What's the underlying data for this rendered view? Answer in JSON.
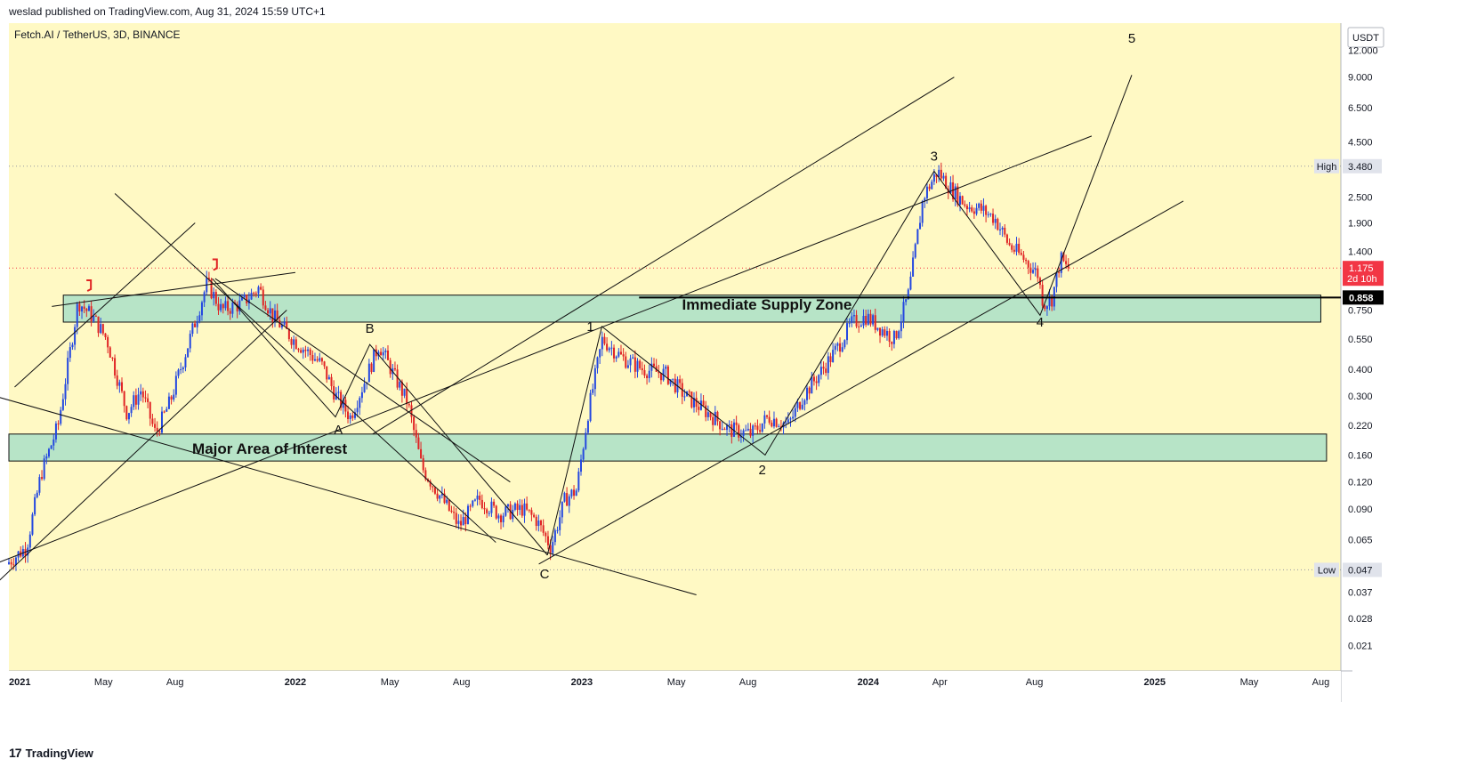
{
  "header": {
    "published": "weslad published on TradingView.com, Aug 31, 2024 15:59 UTC+1"
  },
  "footer": {
    "logo_glyph": "17",
    "brand": "TradingView"
  },
  "chart_data": {
    "type": "candlestick",
    "title": "Fetch.AI / TetherUS, 3D, BINANCE",
    "currency": "USDT",
    "y_scale": "log",
    "ylim": [
      0.016,
      16
    ],
    "y_ticks": [
      "12.000",
      "9.000",
      "6.500",
      "4.500",
      "2.500",
      "1.900",
      "1.400",
      "0.750",
      "0.550",
      "0.400",
      "0.300",
      "0.220",
      "0.160",
      "0.120",
      "0.090",
      "0.065",
      "0.037",
      "0.028",
      "0.021"
    ],
    "x_range": [
      2021.0,
      2025.65
    ],
    "x_ticks": [
      {
        "label": "2021",
        "x": 2021.0,
        "bold": true
      },
      {
        "label": "May",
        "x": 2021.33,
        "bold": false
      },
      {
        "label": "Aug",
        "x": 2021.58,
        "bold": false
      },
      {
        "label": "2022",
        "x": 2022.0,
        "bold": true
      },
      {
        "label": "May",
        "x": 2022.33,
        "bold": false
      },
      {
        "label": "Aug",
        "x": 2022.58,
        "bold": false
      },
      {
        "label": "2023",
        "x": 2023.0,
        "bold": true
      },
      {
        "label": "May",
        "x": 2023.33,
        "bold": false
      },
      {
        "label": "Aug",
        "x": 2023.58,
        "bold": false
      },
      {
        "label": "2024",
        "x": 2024.0,
        "bold": true
      },
      {
        "label": "Apr",
        "x": 2024.25,
        "bold": false
      },
      {
        "label": "Aug",
        "x": 2024.58,
        "bold": false
      },
      {
        "label": "2025",
        "x": 2025.0,
        "bold": true
      },
      {
        "label": "May",
        "x": 2025.33,
        "bold": false
      },
      {
        "label": "Aug",
        "x": 2025.58,
        "bold": false
      }
    ],
    "price_path": [
      [
        2021.0,
        0.05
      ],
      [
        2021.07,
        0.06
      ],
      [
        2021.12,
        0.13
      ],
      [
        2021.18,
        0.22
      ],
      [
        2021.25,
        0.82
      ],
      [
        2021.3,
        0.7
      ],
      [
        2021.35,
        0.55
      ],
      [
        2021.42,
        0.25
      ],
      [
        2021.47,
        0.32
      ],
      [
        2021.52,
        0.2
      ],
      [
        2021.57,
        0.28
      ],
      [
        2021.63,
        0.5
      ],
      [
        2021.7,
        1.0
      ],
      [
        2021.75,
        0.75
      ],
      [
        2021.82,
        0.8
      ],
      [
        2021.88,
        0.95
      ],
      [
        2021.93,
        0.7
      ],
      [
        2022.0,
        0.55
      ],
      [
        2022.1,
        0.42
      ],
      [
        2022.15,
        0.3
      ],
      [
        2022.2,
        0.24
      ],
      [
        2022.25,
        0.35
      ],
      [
        2022.3,
        0.52
      ],
      [
        2022.35,
        0.38
      ],
      [
        2022.4,
        0.28
      ],
      [
        2022.45,
        0.14
      ],
      [
        2022.52,
        0.1
      ],
      [
        2022.58,
        0.075
      ],
      [
        2022.65,
        0.1
      ],
      [
        2022.72,
        0.085
      ],
      [
        2022.8,
        0.09
      ],
      [
        2022.85,
        0.08
      ],
      [
        2022.9,
        0.06
      ],
      [
        2022.95,
        0.1
      ],
      [
        2022.99,
        0.11
      ],
      [
        2023.03,
        0.25
      ],
      [
        2023.08,
        0.55
      ],
      [
        2023.15,
        0.45
      ],
      [
        2023.22,
        0.4
      ],
      [
        2023.3,
        0.38
      ],
      [
        2023.37,
        0.3
      ],
      [
        2023.45,
        0.25
      ],
      [
        2023.52,
        0.21
      ],
      [
        2023.6,
        0.2
      ],
      [
        2023.66,
        0.24
      ],
      [
        2023.73,
        0.22
      ],
      [
        2023.78,
        0.3
      ],
      [
        2023.85,
        0.4
      ],
      [
        2023.9,
        0.5
      ],
      [
        2023.95,
        0.65
      ],
      [
        2024.0,
        0.7
      ],
      [
        2024.05,
        0.62
      ],
      [
        2024.1,
        0.55
      ],
      [
        2024.15,
        0.9
      ],
      [
        2024.2,
        2.5
      ],
      [
        2024.25,
        3.3
      ],
      [
        2024.3,
        2.7
      ],
      [
        2024.35,
        2.3
      ],
      [
        2024.4,
        2.2
      ],
      [
        2024.45,
        2.0
      ],
      [
        2024.5,
        1.5
      ],
      [
        2024.55,
        1.3
      ],
      [
        2024.6,
        1.1
      ],
      [
        2024.62,
        0.8
      ],
      [
        2024.65,
        0.85
      ],
      [
        2024.68,
        1.3
      ],
      [
        2024.7,
        1.175
      ]
    ],
    "zones": [
      {
        "name": "Immediate Supply Zone",
        "x_start": 2021.19,
        "x_end": 2025.58,
        "y_low": 0.66,
        "y_high": 0.88
      },
      {
        "name": "Major Area of Interest",
        "x_start": 2021.0,
        "x_end": 2025.6,
        "y_low": 0.15,
        "y_high": 0.2
      }
    ],
    "wave_labels": [
      {
        "label": "1",
        "x": 2023.03,
        "y": 0.6
      },
      {
        "label": "2",
        "x": 2023.63,
        "y": 0.13
      },
      {
        "label": "3",
        "x": 2024.23,
        "y": 3.7
      },
      {
        "label": "4",
        "x": 2024.6,
        "y": 0.63
      },
      {
        "label": "5",
        "x": 2024.92,
        "y": 13.0
      },
      {
        "label": "A",
        "x": 2022.15,
        "y": 0.2
      },
      {
        "label": "B",
        "x": 2022.26,
        "y": 0.59
      },
      {
        "label": "C",
        "x": 2022.87,
        "y": 0.043
      }
    ],
    "wave_path": [
      [
        2022.88,
        0.055
      ],
      [
        2023.07,
        0.63
      ],
      [
        2023.64,
        0.16
      ],
      [
        2024.23,
        3.3
      ],
      [
        2024.6,
        0.71
      ],
      [
        2024.92,
        9.2
      ]
    ],
    "abc_path": [
      [
        2021.71,
        1.05
      ],
      [
        2022.14,
        0.24
      ],
      [
        2022.26,
        0.52
      ],
      [
        2022.88,
        0.055
      ]
    ],
    "trendlines": [
      [
        [
          2020.95,
          0.05
        ],
        [
          2024.78,
          4.8
        ]
      ],
      [
        [
          2020.95,
          0.04
        ],
        [
          2021.97,
          0.75
        ]
      ],
      [
        [
          2020.95,
          0.3
        ],
        [
          2023.4,
          0.036
        ]
      ],
      [
        [
          2021.37,
          2.6
        ],
        [
          2022.7,
          0.063
        ]
      ],
      [
        [
          2021.72,
          1.05
        ],
        [
          2022.75,
          0.12
        ]
      ],
      [
        [
          2021.15,
          0.78
        ],
        [
          2022.0,
          1.12
        ]
      ],
      [
        [
          2021.02,
          0.33
        ],
        [
          2021.65,
          1.9
        ]
      ],
      [
        [
          2022.85,
          0.05
        ],
        [
          2025.1,
          2.4
        ]
      ],
      [
        [
          2022.27,
          0.2
        ],
        [
          2024.3,
          9.0
        ]
      ]
    ],
    "support_line": {
      "y": 0.858,
      "x_start": 2023.2
    },
    "markers": [
      {
        "label": "High",
        "value": "3.480",
        "y": 3.48
      },
      {
        "label": "Low",
        "value": "0.047",
        "y": 0.047
      }
    ],
    "current_price": {
      "value": "1.175",
      "countdown": "2d 10h",
      "y": 1.175
    },
    "level_badge": {
      "value": "0.858",
      "y": 0.858
    },
    "annotations": [
      "Immediate Supply Zone",
      "Major Area of Interest"
    ]
  }
}
